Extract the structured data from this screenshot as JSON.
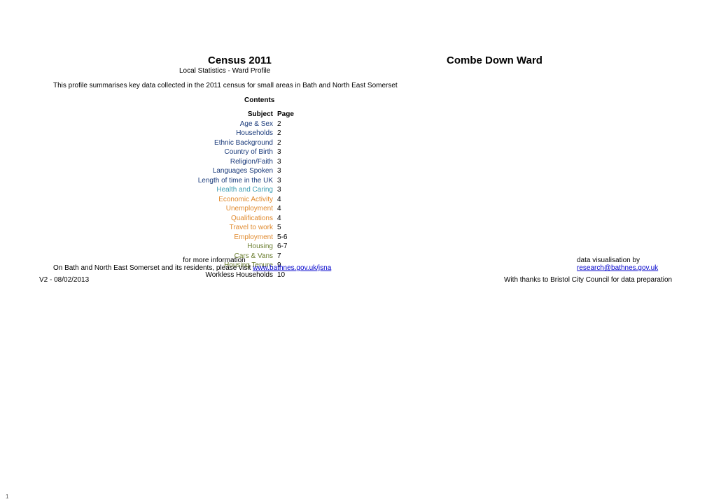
{
  "title": "Census 2011",
  "ward_name": "Combe Down Ward",
  "subtitle": "Local Statistics - Ward Profile",
  "intro": "This profile summarises key data collected in the 2011 census for small areas in Bath and North East Somerset",
  "contents_label": "Contents",
  "toc": {
    "header_subject": "Subject",
    "header_page": "Page",
    "rows": [
      {
        "subject": "Age & Sex",
        "page": "2",
        "color": "#1a3a7a"
      },
      {
        "subject": "Households",
        "page": "2",
        "color": "#1a3a7a"
      },
      {
        "subject": "Ethnic Background",
        "page": "2",
        "color": "#1a3a7a"
      },
      {
        "subject": "Country of Birth",
        "page": "3",
        "color": "#1a3a7a"
      },
      {
        "subject": "Religion/Faith",
        "page": "3",
        "color": "#1a3a7a"
      },
      {
        "subject": "Languages Spoken",
        "page": "3",
        "color": "#1a3a7a"
      },
      {
        "subject": "Length of time in the UK",
        "page": "3",
        "color": "#1a3a7a"
      },
      {
        "subject": "Health and Caring",
        "page": "3",
        "color": "#3d9db3"
      },
      {
        "subject": "Economic Activity",
        "page": "4",
        "color": "#e08a2e"
      },
      {
        "subject": "Unemployment",
        "page": "4",
        "color": "#e08a2e"
      },
      {
        "subject": "Qualifications",
        "page": "4",
        "color": "#e08a2e"
      },
      {
        "subject": "Travel to work",
        "page": "5",
        "color": "#e08a2e"
      },
      {
        "subject": "Employment",
        "page": "5-6",
        "color": "#e08a2e"
      },
      {
        "subject": "Housing",
        "page": "6-7",
        "color": "#6a7d2e"
      },
      {
        "subject": "Cars & Vans",
        "page": "7",
        "color": "#6a7d2e"
      },
      {
        "subject": "Housing Tenure",
        "page": "9",
        "color": "#6a7d2e"
      },
      {
        "subject": "Workless Households",
        "page": "10",
        "color": "#000000"
      }
    ]
  },
  "footer": {
    "more_info_label": "for more information",
    "more_info_text_prefix": "On Bath and North East Somerset and its residents, please visit ",
    "more_info_link": "www.bathnes.gov.uk/jsna",
    "data_vis_label": "data visualisation by ",
    "data_vis_link": "research@bathnes.gov.uk",
    "thanks": "With thanks to Bristol City Council for data preparation"
  },
  "version": "V2 - 08/02/2013",
  "page_number": "1"
}
